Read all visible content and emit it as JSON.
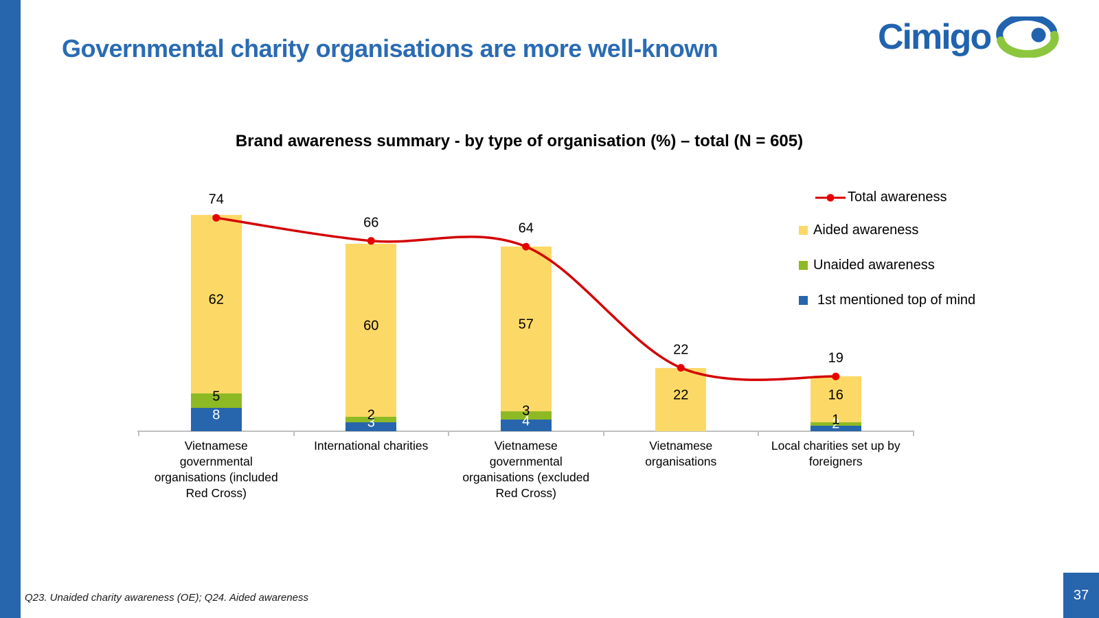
{
  "slide": {
    "title": "Governmental charity organisations are more well-known",
    "footnote": "Q23. Unaided charity awareness (OE); Q24. Aided awareness",
    "page_number": "37",
    "logo_text": "Cimigo"
  },
  "chart_data": {
    "type": "combo (stacked column + smoothed line)",
    "title": "Brand awareness summary - by type of organisation (%) – total (N = 605)",
    "unit": "%",
    "sample": "N = 605",
    "grid": "off",
    "value_axis_visible": false,
    "legend_position": "right",
    "categories": [
      "Vietnamese governmental organisations (included Red Cross)",
      "International charities",
      "Vietnamese governmental organisations (excluded Red Cross)",
      "Vietnamese organisations",
      "Local charities set up by foreigners"
    ],
    "categories_wrapped": [
      "Vietnamese\ngovernmental\norganisations (included\nRed Cross)",
      "International charities",
      "Vietnamese\ngovernmental\norganisations (excluded\nRed Cross)",
      "Vietnamese\norganisations",
      "Local charities set up by\nforeigners"
    ],
    "series": [
      {
        "name": "1st mentioned top of mind",
        "render": "stacked-bar",
        "color": "#2765AC",
        "label_color": "#FFFFFF",
        "values": [
          8,
          3,
          4,
          null,
          2
        ]
      },
      {
        "name": "Unaided awareness",
        "render": "stacked-bar",
        "color": "#8DB924",
        "label_color": "#000000",
        "values": [
          5,
          2,
          3,
          null,
          1
        ]
      },
      {
        "name": "Aided awareness",
        "render": "stacked-bar",
        "color": "#FCD966",
        "label_color": "#000000",
        "values": [
          62,
          60,
          57,
          22,
          16
        ]
      },
      {
        "name": "Total awareness",
        "render": "smoothed-line",
        "color": "#D40000",
        "marker_color": "#E60000",
        "values": [
          74,
          66,
          64,
          22,
          19
        ]
      }
    ],
    "legend": [
      "Total awareness",
      "Aided awareness",
      "Unaided awareness",
      "1st mentioned top of mind"
    ]
  },
  "colors": {
    "accent_bar": "#2765AC",
    "heading": "#2A6BB3",
    "logo_blue": "#2163AE",
    "logo_green": "#8CC63F",
    "axis": "#BFBFBF",
    "page_badge_bg": "#2765AC"
  }
}
